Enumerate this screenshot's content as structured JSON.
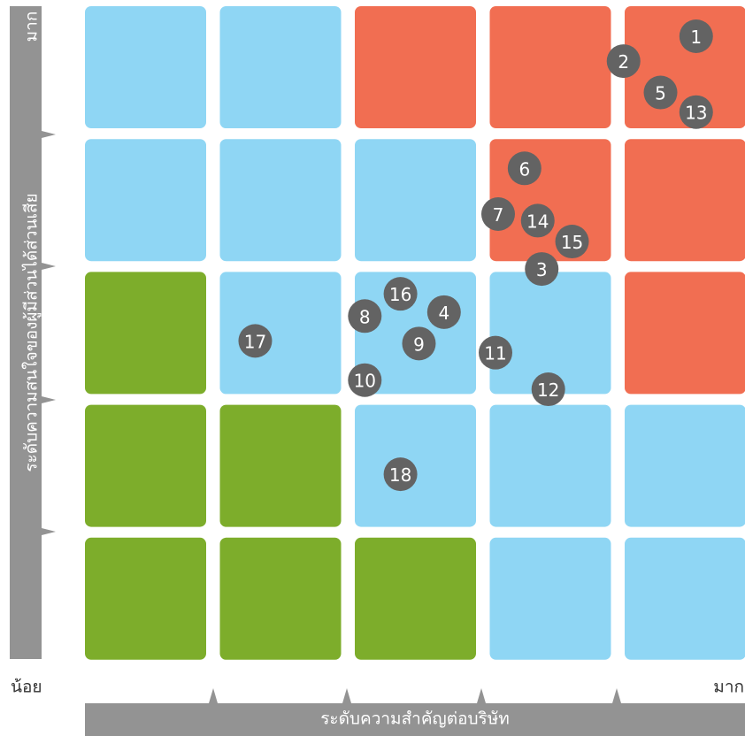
{
  "chart_data": {
    "type": "heatmap",
    "title": "",
    "xlabel": "ระดับความสำคัญต่อบริษัท",
    "ylabel": "ระดับความสนใจของผู้มีส่วนได้ส่วนเสีย",
    "x_low_label": "น้อย",
    "x_high_label": "มาก",
    "y_high_label": "มาก",
    "columns": 5,
    "rows": 5,
    "colors": {
      "red": "#F16E52",
      "blue": "#8FD6F4",
      "green": "#7DAD2B",
      "marker": "#636363",
      "axis": "#939393"
    },
    "grid_colors_top_to_bottom": [
      [
        "blue",
        "blue",
        "red",
        "red",
        "red"
      ],
      [
        "blue",
        "blue",
        "blue",
        "red",
        "red"
      ],
      [
        "green",
        "blue",
        "blue",
        "blue",
        "red"
      ],
      [
        "green",
        "green",
        "blue",
        "blue",
        "blue"
      ],
      [
        "green",
        "green",
        "green",
        "blue",
        "blue"
      ]
    ],
    "xlim": [
      0,
      5
    ],
    "ylim": [
      0,
      5
    ],
    "points": [
      {
        "label": "1",
        "x": 4.63,
        "y": 4.77
      },
      {
        "label": "2",
        "x": 4.08,
        "y": 4.58
      },
      {
        "label": "5",
        "x": 4.36,
        "y": 4.34
      },
      {
        "label": "13",
        "x": 4.63,
        "y": 4.19
      },
      {
        "label": "6",
        "x": 3.33,
        "y": 3.76
      },
      {
        "label": "7",
        "x": 3.13,
        "y": 3.41
      },
      {
        "label": "14",
        "x": 3.43,
        "y": 3.36
      },
      {
        "label": "15",
        "x": 3.69,
        "y": 3.2
      },
      {
        "label": "3",
        "x": 3.46,
        "y": 2.99
      },
      {
        "label": "16",
        "x": 2.39,
        "y": 2.8
      },
      {
        "label": "4",
        "x": 2.72,
        "y": 2.66
      },
      {
        "label": "8",
        "x": 2.12,
        "y": 2.63
      },
      {
        "label": "9",
        "x": 2.53,
        "y": 2.42
      },
      {
        "label": "17",
        "x": 1.29,
        "y": 2.44
      },
      {
        "label": "11",
        "x": 3.11,
        "y": 2.35
      },
      {
        "label": "10",
        "x": 2.12,
        "y": 2.14
      },
      {
        "label": "12",
        "x": 3.51,
        "y": 2.07
      },
      {
        "label": "18",
        "x": 2.39,
        "y": 1.42
      }
    ]
  }
}
